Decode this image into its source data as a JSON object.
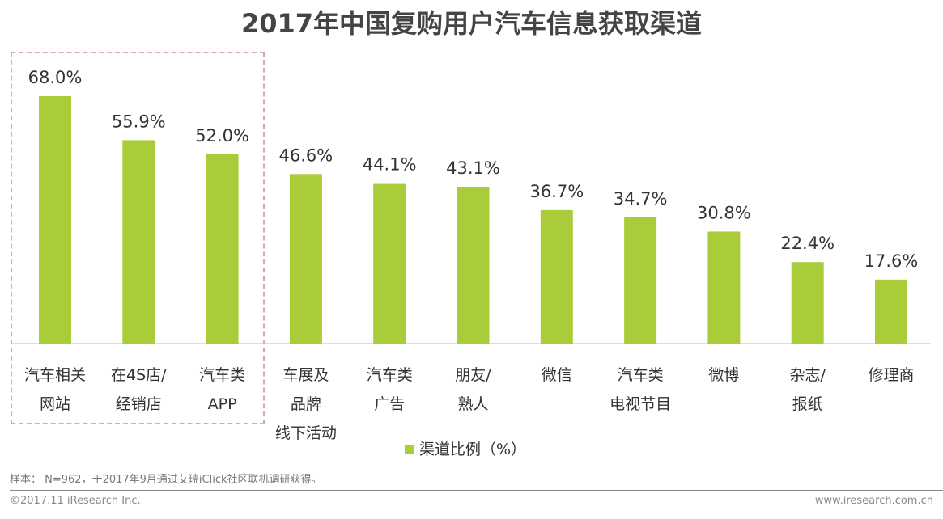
{
  "chart_data": {
    "type": "bar",
    "title": "2017年中国复购用户汽车信息获取渠道",
    "categories": [
      [
        "汽车相关",
        "网站"
      ],
      [
        "在4S店/",
        "经销店"
      ],
      [
        "汽车类",
        "APP"
      ],
      [
        "车展及",
        "品牌",
        "线下活动"
      ],
      [
        "汽车类",
        "广告"
      ],
      [
        "朋友/",
        "熟人"
      ],
      [
        "微信"
      ],
      [
        "汽车类",
        "电视节目"
      ],
      [
        "微博"
      ],
      [
        "杂志/",
        "报纸"
      ],
      [
        "修理商"
      ]
    ],
    "values": [
      68.0,
      55.9,
      52.0,
      46.6,
      44.1,
      43.1,
      36.7,
      34.7,
      30.8,
      22.4,
      17.6
    ],
    "labels": [
      "68.0%",
      "55.9%",
      "52.0%",
      "46.6%",
      "44.1%",
      "43.1%",
      "36.7%",
      "34.7%",
      "30.8%",
      "22.4%",
      "17.6%"
    ],
    "legend": "渠道比例（%）",
    "legend_position": "bottom",
    "ylim": [
      0,
      70
    ],
    "grid": false,
    "highlighted_categories": [
      0,
      1,
      2
    ],
    "color": "#a9cd3a"
  },
  "footer": {
    "note": "样本： N=962，于2017年9月通过艾瑞iClick社区联机调研获得。",
    "copyright": "©2017.11 iResearch Inc.",
    "site": "www.iresearch.com.cn"
  }
}
